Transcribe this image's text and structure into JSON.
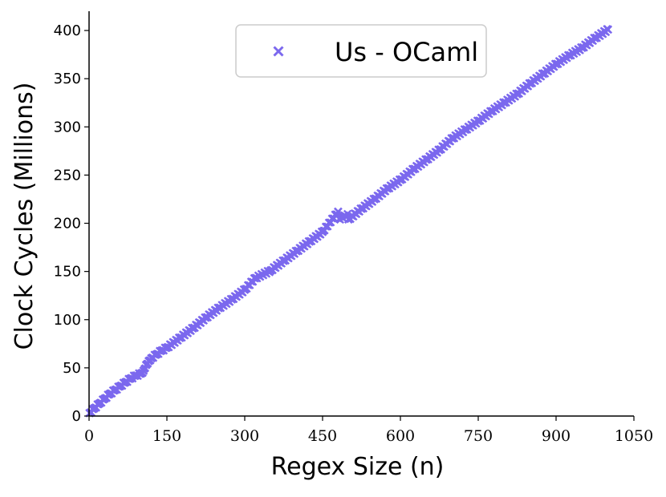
{
  "colors": {
    "series": "#7b68ee",
    "axis": "#000000",
    "legend_border": "#cccccc"
  },
  "chart_data": {
    "type": "scatter",
    "title": "",
    "xlabel": "Regex Size (n)",
    "ylabel": "Clock Cycles (Millions)",
    "xlim": [
      0,
      1050
    ],
    "ylim": [
      0,
      420
    ],
    "xticks": [
      "0",
      "150",
      "300",
      "450",
      "600",
      "750",
      "900",
      "1050"
    ],
    "xtick_values": [
      0,
      150,
      300,
      450,
      600,
      750,
      900,
      1050
    ],
    "yticks": [
      "0",
      "50",
      "100",
      "150",
      "200",
      "250",
      "300",
      "350",
      "400"
    ],
    "ytick_values": [
      0,
      50,
      100,
      150,
      200,
      250,
      300,
      350,
      400
    ],
    "grid": false,
    "legend": {
      "position": "top-center",
      "entries": [
        "Us - OCaml"
      ]
    },
    "marker": "x",
    "series": [
      {
        "name": "Us - OCaml",
        "color": "#7b68ee",
        "x": [
          1,
          10,
          20,
          30,
          40,
          50,
          60,
          70,
          80,
          90,
          100,
          105,
          110,
          115,
          120,
          130,
          140,
          150,
          175,
          200,
          225,
          250,
          275,
          300,
          320,
          350,
          375,
          400,
          425,
          450,
          480,
          500,
          525,
          550,
          575,
          600,
          625,
          650,
          675,
          700,
          725,
          750,
          775,
          800,
          825,
          850,
          875,
          900,
          925,
          950,
          975,
          1000
        ],
        "y": [
          3,
          8,
          13,
          18,
          23,
          27,
          31,
          35,
          39,
          42,
          44,
          47,
          53,
          57,
          60,
          64,
          68,
          71,
          81,
          91,
          102,
          112,
          121,
          131,
          143,
          151,
          161,
          171,
          181,
          191,
          212,
          204,
          215,
          225,
          236,
          245,
          256,
          266,
          276,
          288,
          297,
          306,
          316,
          325,
          334,
          345,
          355,
          365,
          374,
          382,
          392,
          401
        ]
      }
    ]
  }
}
